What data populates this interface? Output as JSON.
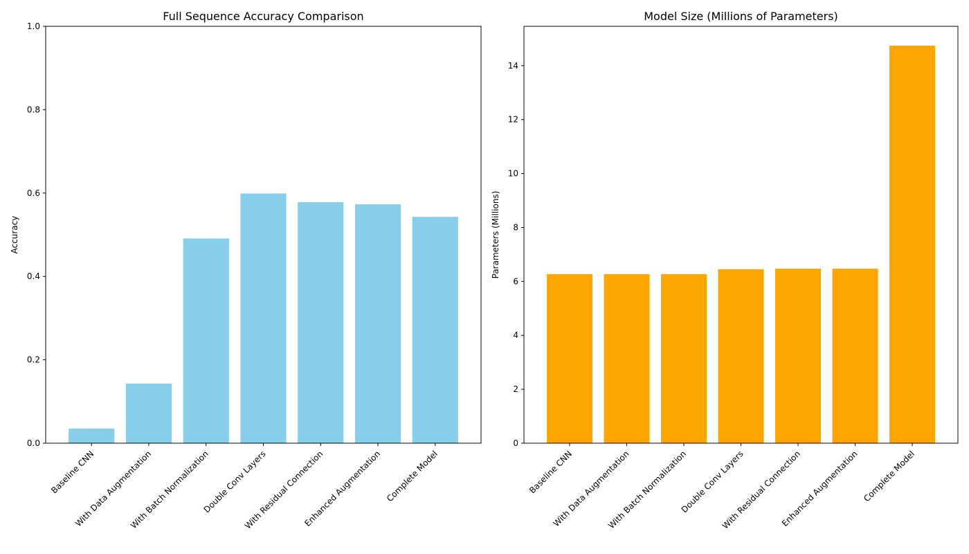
{
  "chart_data": [
    {
      "type": "bar",
      "title": "Full Sequence Accuracy Comparison",
      "xlabel": "",
      "ylabel": "Accuracy",
      "ylim": [
        0,
        1.0
      ],
      "yticks": [
        "0.0",
        "0.2",
        "0.4",
        "0.6",
        "0.8",
        "1.0"
      ],
      "categories": [
        "Baseline CNN",
        "With Data Augmentation",
        "With Batch Normalization",
        "Double Conv Layers",
        "With Residual Connection",
        "Enhanced Augmentation",
        "Complete Model"
      ],
      "values": [
        0.035,
        0.143,
        0.491,
        0.599,
        0.578,
        0.573,
        0.543
      ],
      "color": "#87ceeb",
      "grid": false
    },
    {
      "type": "bar",
      "title": "Model Size (Millions of Parameters)",
      "xlabel": "",
      "ylabel": "Parameters (Millions)",
      "ylim": [
        0,
        15.46
      ],
      "yticks": [
        "0",
        "2",
        "4",
        "6",
        "8",
        "10",
        "12",
        "14"
      ],
      "categories": [
        "Baseline CNN",
        "With Data Augmentation",
        "With Batch Normalization",
        "Double Conv Layers",
        "With Residual Connection",
        "Enhanced Augmentation",
        "Complete Model"
      ],
      "values": [
        6.27,
        6.27,
        6.27,
        6.45,
        6.47,
        6.47,
        14.74
      ],
      "color": "#ffa500",
      "grid": false
    }
  ]
}
